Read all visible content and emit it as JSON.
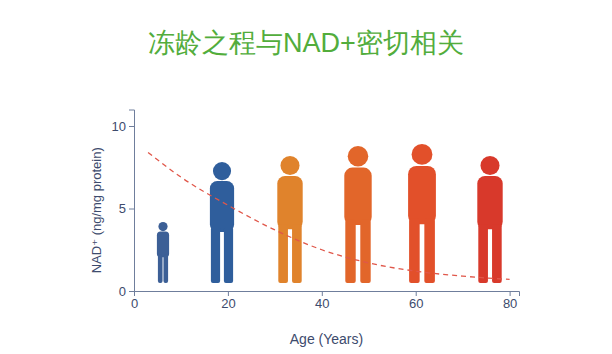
{
  "chart_data": {
    "type": "line",
    "title": "冻龄之程与NAD+密切相关",
    "x_label": "Age (Years)",
    "y_label": "NAD⁺ (ng/mg protein)",
    "x": [
      3,
      10,
      20,
      30,
      40,
      50,
      60,
      70,
      80
    ],
    "values": [
      8.4,
      6.9,
      5.2,
      3.7,
      2.5,
      1.7,
      1.2,
      0.9,
      0.7
    ],
    "color": "#e0574a",
    "line_style": "dashed",
    "xlim": [
      0,
      82
    ],
    "xticks": [
      0,
      20,
      40,
      60,
      80
    ],
    "ylim": [
      0,
      11
    ],
    "yticks": [
      0,
      5,
      10
    ],
    "grid": false
  }
}
